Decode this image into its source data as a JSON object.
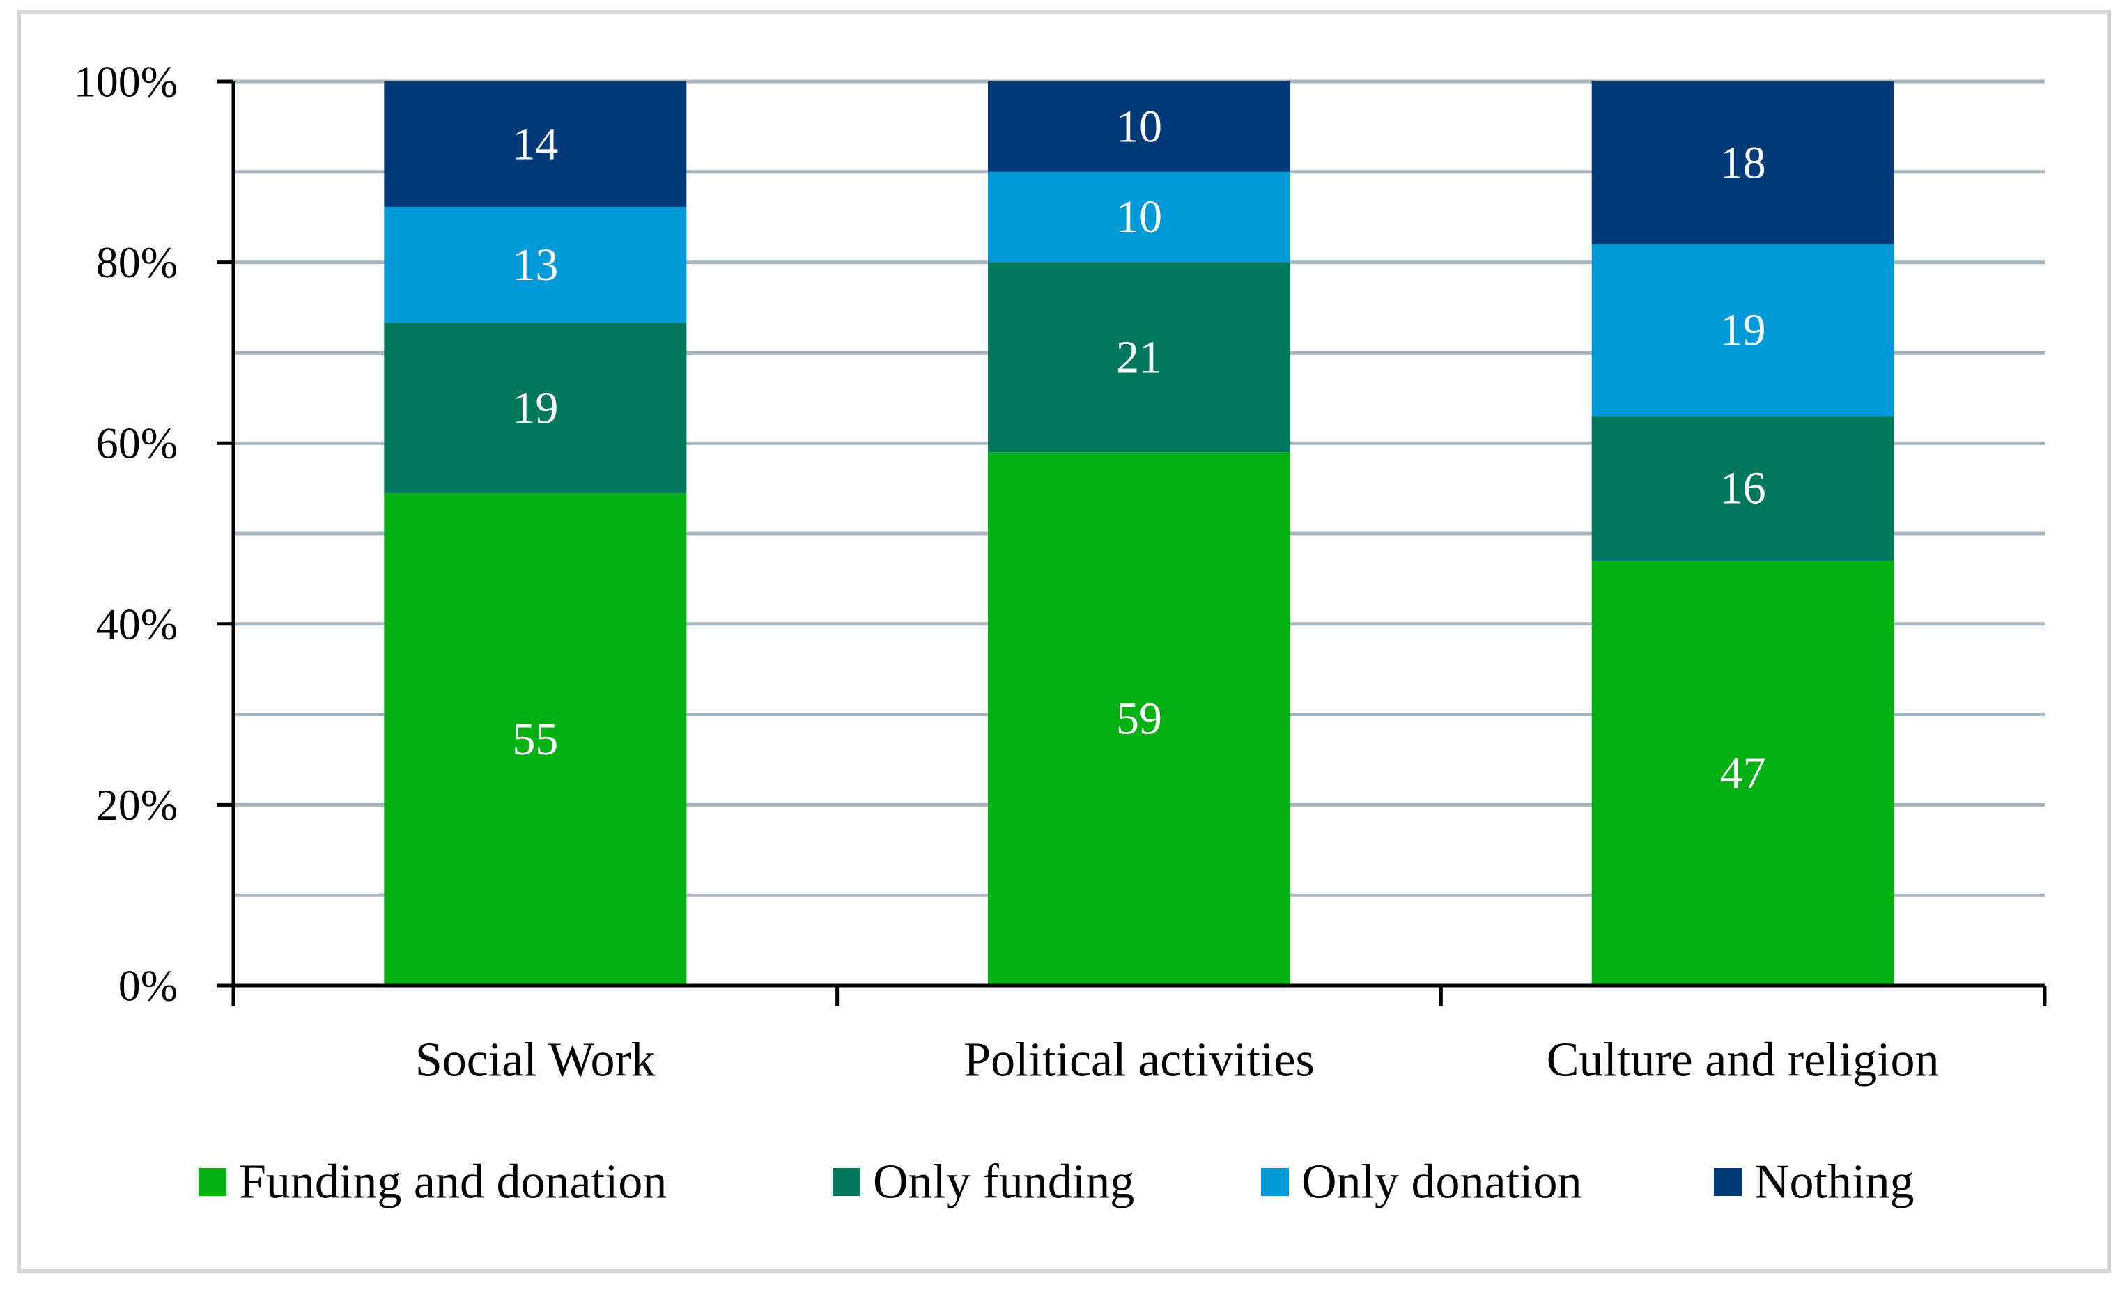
{
  "chart_data": {
    "type": "bar",
    "stacked": true,
    "percent_stacked": true,
    "categories": [
      "Social Work",
      "Political activities",
      "Culture and religion"
    ],
    "series": [
      {
        "name": "Funding and donation",
        "values": [
          55,
          59,
          47
        ],
        "color": "#03b013"
      },
      {
        "name": "Only funding",
        "values": [
          19,
          21,
          16
        ],
        "color": "#01775b"
      },
      {
        "name": "Only donation",
        "values": [
          13,
          10,
          19
        ],
        "color": "#0099d8"
      },
      {
        "name": "Nothing",
        "values": [
          14,
          10,
          18
        ],
        "color": "#003a78"
      }
    ],
    "data_labels": [
      [
        "55",
        "59",
        "47"
      ],
      [
        "19",
        "21",
        "16"
      ],
      [
        "13",
        "10",
        "19"
      ],
      [
        "14",
        "10",
        "18"
      ]
    ],
    "ylim": [
      0,
      100
    ],
    "y_ticks": [
      "0%",
      "20%",
      "40%",
      "60%",
      "80%",
      "100%"
    ],
    "y_tick_values": [
      0,
      20,
      40,
      60,
      80,
      100
    ],
    "gridlines": [
      10,
      20,
      30,
      40,
      50,
      60,
      70,
      80,
      90,
      100
    ],
    "grid": true,
    "grid_color": "#a6b5bf",
    "legend_position": "bottom",
    "title": "",
    "xlabel": "",
    "ylabel": ""
  }
}
